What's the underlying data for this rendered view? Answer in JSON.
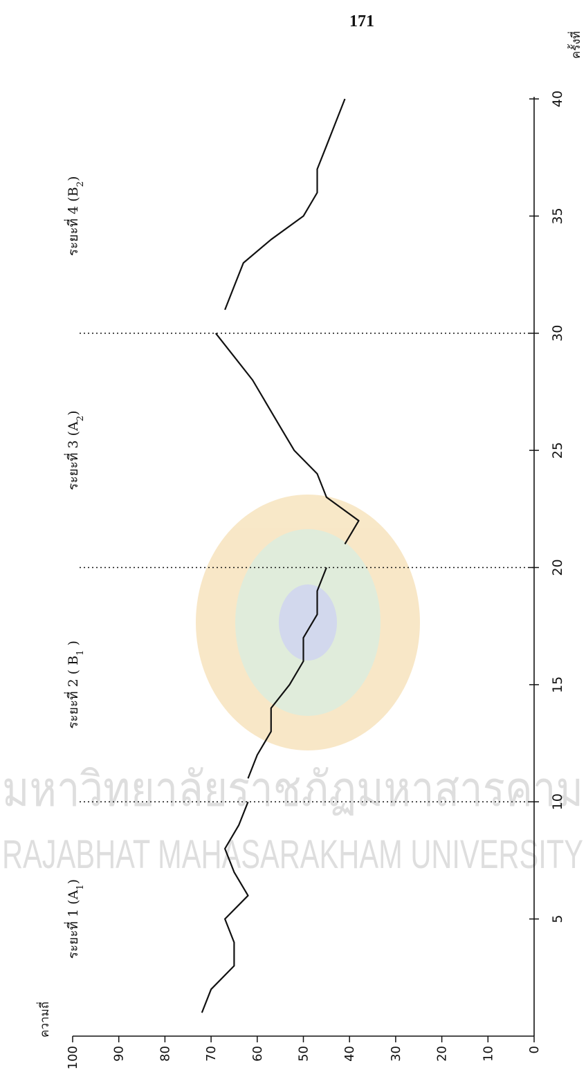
{
  "page_number": "171",
  "watermark": {
    "thai_text": "มหาวิทยาลัยราชภัฏมหาสารคาม",
    "english_text": "RAJABHAT MAHASARAKHAM UNIVERSITY",
    "colors": {
      "seal_outer": "#e9b24a",
      "seal_ring": "#9bc28a",
      "seal_inner": "#6c7fc4",
      "text": "#b7b7b7"
    }
  },
  "chart_data": {
    "type": "line",
    "orientation": "rotated-90",
    "xlabel": "ครั้งที่",
    "ylabel": "ความถี่",
    "xlim": [
      0,
      40
    ],
    "ylim": [
      0,
      100
    ],
    "x_ticks": [
      "5",
      "10",
      "15",
      "20",
      "25",
      "30",
      "35",
      "40"
    ],
    "y_ticks": [
      "0",
      "10",
      "20",
      "30",
      "40",
      "50",
      "60",
      "70",
      "80",
      "90",
      "100"
    ],
    "phase_boundaries": [
      10,
      20,
      30
    ],
    "phases": [
      {
        "label": "ระยะที่ 1 (A",
        "sub": "1",
        "tail": ")",
        "center": 5
      },
      {
        "label": "ระยะที่ 2 ( B",
        "sub": "1",
        "tail": " )",
        "center": 15
      },
      {
        "label": "ระยะที่ 3 (A",
        "sub": "2",
        "tail": ")",
        "center": 25
      },
      {
        "label": "ระยะที่ 4 (B",
        "sub": "2",
        "tail": ")",
        "center": 35
      }
    ],
    "series": [
      {
        "points": [
          [
            1,
            72
          ],
          [
            2,
            70
          ],
          [
            3,
            65
          ],
          [
            4,
            65
          ],
          [
            5,
            67
          ],
          [
            6,
            62
          ],
          [
            7,
            65
          ],
          [
            8,
            67
          ],
          [
            9,
            64
          ],
          [
            10,
            62
          ]
        ]
      },
      {
        "points": [
          [
            11,
            62
          ],
          [
            12,
            60
          ],
          [
            13,
            57
          ],
          [
            14,
            57
          ],
          [
            15,
            53
          ],
          [
            16,
            50
          ],
          [
            17,
            50
          ],
          [
            18,
            47
          ],
          [
            19,
            47
          ],
          [
            20,
            45
          ]
        ]
      },
      {
        "points": [
          [
            21,
            41
          ],
          [
            22,
            38
          ],
          [
            23,
            45
          ],
          [
            24,
            47
          ],
          [
            25,
            52
          ],
          [
            26,
            55
          ],
          [
            27,
            58
          ],
          [
            28,
            61
          ],
          [
            29,
            65
          ],
          [
            30,
            69
          ]
        ]
      },
      {
        "points": [
          [
            31,
            67
          ],
          [
            32,
            65
          ],
          [
            33,
            63
          ],
          [
            34,
            57
          ],
          [
            35,
            50
          ],
          [
            36,
            47
          ],
          [
            37,
            47
          ],
          [
            38,
            45
          ],
          [
            39,
            43
          ],
          [
            40,
            41
          ]
        ]
      }
    ],
    "grid": false,
    "line_color": "#111111"
  }
}
